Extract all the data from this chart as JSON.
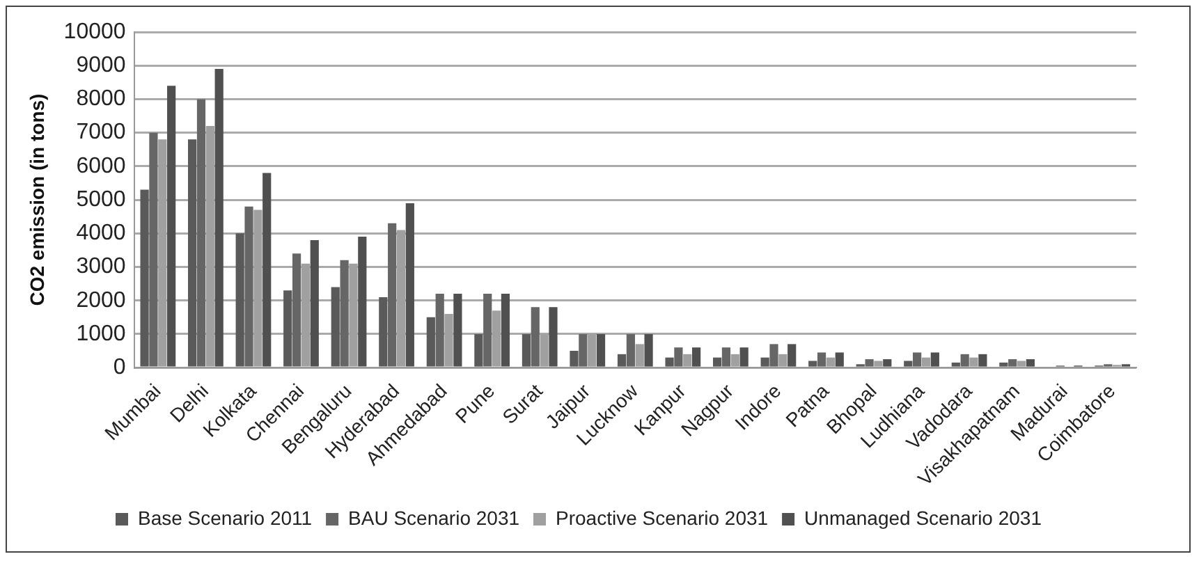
{
  "chart_data": {
    "type": "bar",
    "ylabel": "CO2 emission (in tons)",
    "categories": [
      "Mumbai",
      "Delhi",
      "Kolkata",
      "Chennai",
      "Bengaluru",
      "Hyderabad",
      "Ahmedabad",
      "Pune",
      "Surat",
      "Jaipur",
      "Lucknow",
      "Kanpur",
      "Nagpur",
      "Indore",
      "Patna",
      "Bhopal",
      "Ludhiana",
      "Vadodara",
      "Visakhapatnam",
      "Madurai",
      "Coimbatore"
    ],
    "series": [
      {
        "name": "Base Scenario 2011",
        "color": "#5a5a5a",
        "values": [
          5300,
          6800,
          4000,
          2300,
          2400,
          2100,
          1500,
          1000,
          1000,
          500,
          400,
          300,
          300,
          300,
          200,
          100,
          200,
          150,
          150,
          null,
          60
        ]
      },
      {
        "name": "BAU Scenario 2031",
        "color": "#666666",
        "values": [
          7000,
          8000,
          4800,
          3400,
          3200,
          4300,
          2200,
          2200,
          1800,
          1000,
          1000,
          600,
          600,
          700,
          450,
          250,
          450,
          400,
          250,
          60,
          100
        ]
      },
      {
        "name": "Proactive Scenario 2031",
        "color": "#a0a0a0",
        "values": [
          6800,
          7200,
          4700,
          3100,
          3100,
          4100,
          1600,
          1700,
          1000,
          1000,
          700,
          400,
          400,
          400,
          300,
          200,
          300,
          300,
          200,
          null,
          80
        ]
      },
      {
        "name": "Unmanaged Scenario 2031",
        "color": "#505050",
        "values": [
          8400,
          8900,
          5800,
          3800,
          3900,
          4900,
          2200,
          2200,
          1800,
          1000,
          1000,
          600,
          600,
          700,
          450,
          250,
          450,
          400,
          250,
          60,
          100
        ]
      }
    ],
    "ylim": [
      0,
      10000
    ],
    "yticks": [
      0,
      1000,
      2000,
      3000,
      4000,
      5000,
      6000,
      7000,
      8000,
      9000,
      10000
    ],
    "grid": "y",
    "legend": "bottom"
  }
}
